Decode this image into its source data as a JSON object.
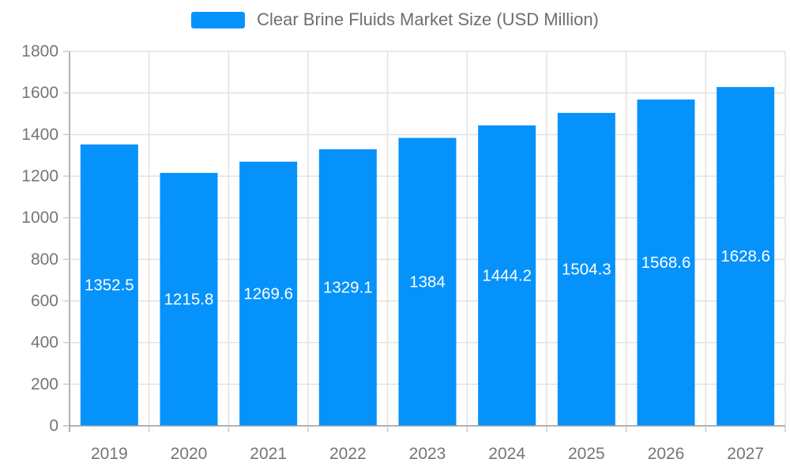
{
  "chart_data": {
    "type": "bar",
    "title": "Clear Brine Fluids Market Size (USD Million)",
    "legend_position": "top-center",
    "categories": [
      "2019",
      "2020",
      "2021",
      "2022",
      "2023",
      "2024",
      "2025",
      "2026",
      "2027"
    ],
    "values": [
      1352.5,
      1215.8,
      1269.6,
      1329.1,
      1384,
      1444.2,
      1504.3,
      1568.6,
      1628.6
    ],
    "value_labels": [
      "1352.5",
      "1215.8",
      "1269.6",
      "1329.1",
      "1384",
      "1444.2",
      "1504.3",
      "1568.6",
      "1628.6"
    ],
    "xlabel": "",
    "ylabel": "",
    "ylim": [
      0,
      1800
    ],
    "ytick_step": 200,
    "ytick_labels": [
      "0",
      "200",
      "400",
      "600",
      "800",
      "1000",
      "1200",
      "1400",
      "1600",
      "1800"
    ],
    "grid": true,
    "colors": {
      "bar": "#0692fb",
      "bar_label": "#ffffff",
      "grid_line": "#e2e2e2",
      "axis_line": "#999999",
      "tick_line": "#cccccc",
      "axis_label": "#757575",
      "title_text": "#6e6e6e"
    }
  }
}
